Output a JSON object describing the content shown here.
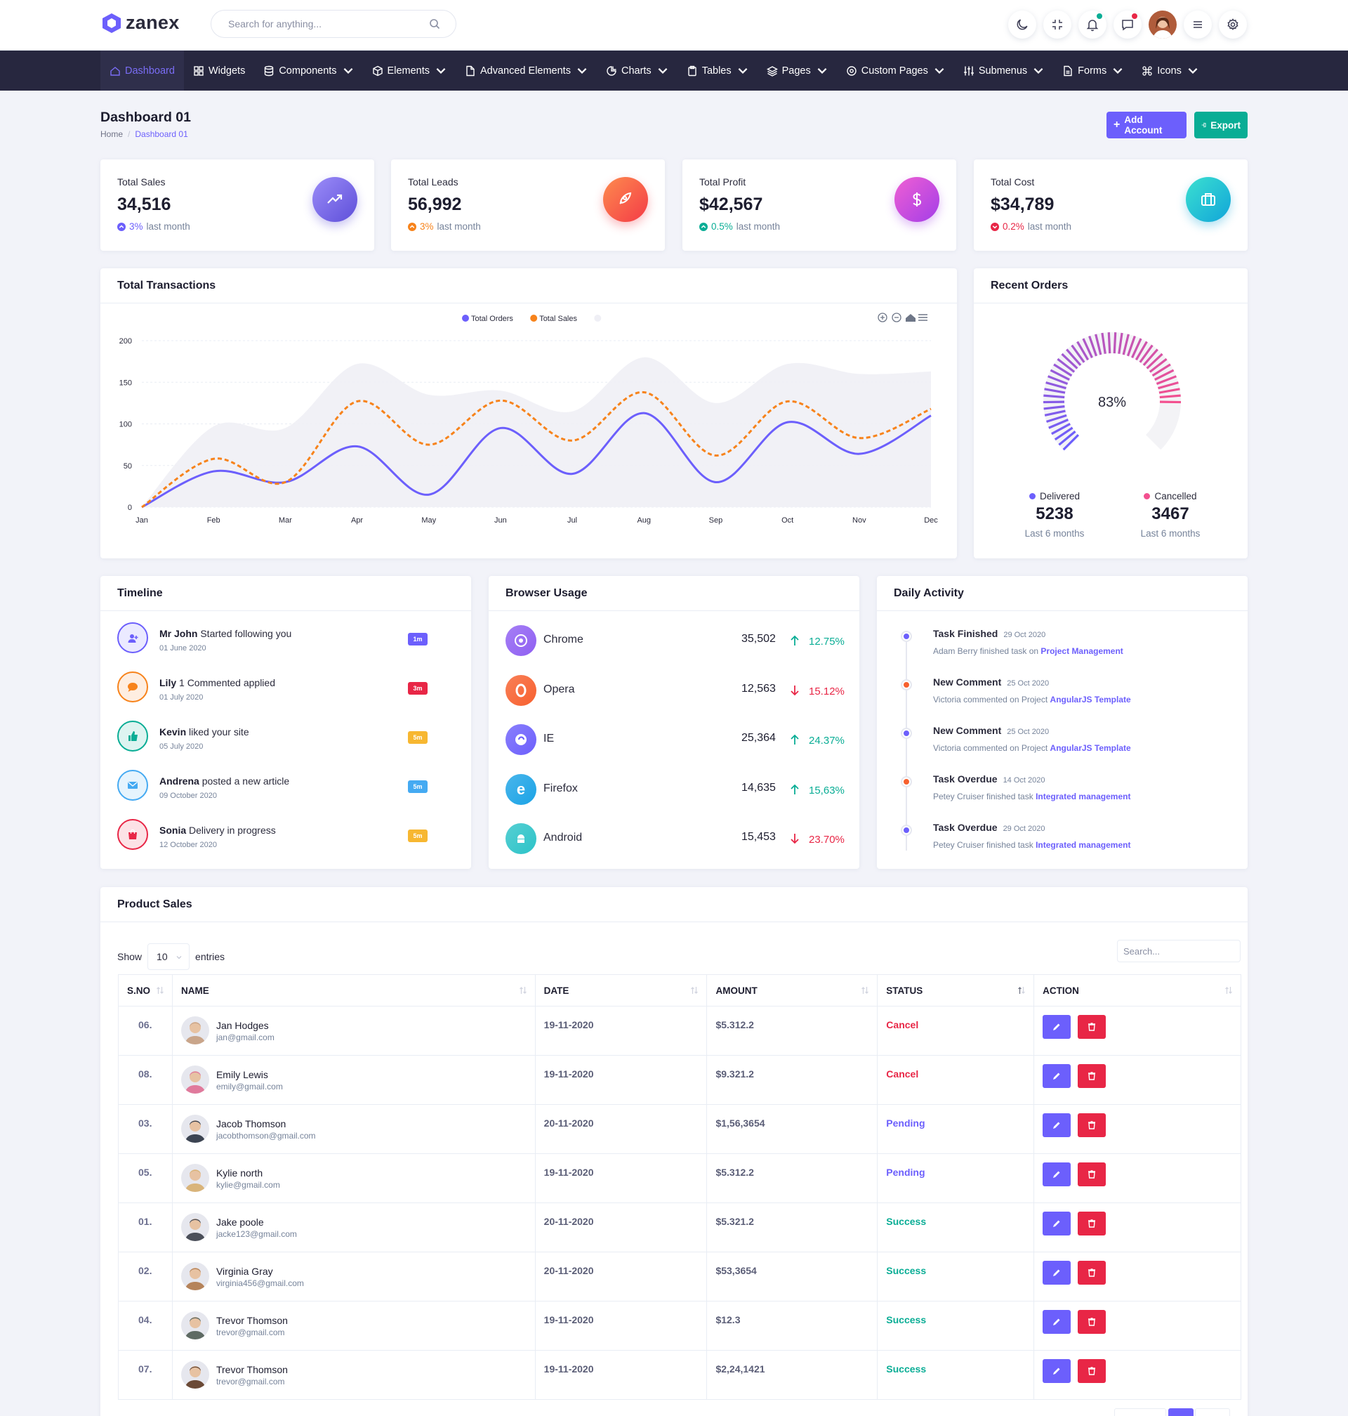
{
  "header": {
    "logo_text": "zanex",
    "search_placeholder": "Search for anything...",
    "icons": [
      "moon-icon",
      "fullscreen-exit-icon",
      "bell-icon",
      "message-icon",
      "avatar",
      "menu-icon",
      "gear-icon"
    ]
  },
  "nav": [
    {
      "label": "Dashboard",
      "icon": "home-icon",
      "active": true,
      "caret": false
    },
    {
      "label": "Widgets",
      "icon": "grid-icon",
      "caret": false
    },
    {
      "label": "Components",
      "icon": "database-icon",
      "caret": true
    },
    {
      "label": "Elements",
      "icon": "cube-icon",
      "caret": true
    },
    {
      "label": "Advanced Elements",
      "icon": "file-icon",
      "caret": true
    },
    {
      "label": "Charts",
      "icon": "pie-chart-icon",
      "caret": true
    },
    {
      "label": "Tables",
      "icon": "clipboard-icon",
      "caret": true
    },
    {
      "label": "Pages",
      "icon": "layers-icon",
      "caret": true
    },
    {
      "label": "Custom Pages",
      "icon": "settings-icon",
      "caret": true
    },
    {
      "label": "Submenus",
      "icon": "sliders-icon",
      "caret": true
    },
    {
      "label": "Forms",
      "icon": "file-text-icon",
      "caret": true
    },
    {
      "label": "Icons",
      "icon": "command-icon",
      "caret": true
    }
  ],
  "page": {
    "title": "Dashboard 01",
    "breadcrumb": [
      "Home",
      "Dashboard 01"
    ],
    "add_account": "Add Account",
    "export": "Export"
  },
  "stats": [
    {
      "label": "Total Sales",
      "value": "34,516",
      "pct": "3%",
      "suffix": "last month",
      "pct_color": "#6c5ffc",
      "trend": "up"
    },
    {
      "label": "Total Leads",
      "value": "56,992",
      "pct": "3%",
      "suffix": "last month",
      "pct_color": "#f7831b",
      "trend": "up"
    },
    {
      "label": "Total Profit",
      "value": "$42,567",
      "pct": "0.5%",
      "suffix": "last month",
      "pct_color": "#09ad95",
      "trend": "up"
    },
    {
      "label": "Total Cost",
      "value": "$34,789",
      "pct": "0.2%",
      "suffix": "last month",
      "pct_color": "#e82646",
      "trend": "down"
    }
  ],
  "transactions": {
    "title": "Total Transactions",
    "legend": [
      "Total Orders",
      "Total Sales"
    ]
  },
  "chart_data": {
    "type": "line",
    "title": "Total Transactions",
    "categories": [
      "Jan",
      "Feb",
      "Mar",
      "Apr",
      "May",
      "Jun",
      "Jul",
      "Aug",
      "Sep",
      "Oct",
      "Nov",
      "Dec"
    ],
    "ylim": [
      0,
      200
    ],
    "yticks": [
      0,
      50,
      100,
      150,
      200
    ],
    "series": [
      {
        "name": "Total Orders",
        "color": "#6c5ffc",
        "style": "solid",
        "values": [
          0,
          43,
          30,
          73,
          15,
          95,
          40,
          113,
          30,
          102,
          64,
          110
        ]
      },
      {
        "name": "Total Sales",
        "color": "#f7831b",
        "style": "dashed",
        "values": [
          0,
          58,
          30,
          127,
          75,
          128,
          80,
          138,
          62,
          127,
          83,
          118
        ]
      },
      {
        "name": "",
        "color": "#efeff5",
        "style": "area",
        "values": [
          0,
          97,
          95,
          172,
          135,
          140,
          115,
          180,
          125,
          172,
          160,
          163
        ]
      }
    ],
    "grid": true,
    "legend_position": "top-center"
  },
  "recent_orders": {
    "title": "Recent Orders",
    "percent": "83%",
    "percent_value": 83,
    "delivered_label": "Delivered",
    "delivered_value": "5238",
    "delivered_sub": "Last 6 months",
    "cancelled_label": "Cancelled",
    "cancelled_value": "3467",
    "cancelled_sub": "Last 6 months"
  },
  "timeline": {
    "title": "Timeline",
    "items": [
      {
        "name": "Mr John",
        "text": "Started following you",
        "date": "01 June 2020",
        "badge": "1m",
        "color": "#6c5ffc",
        "icon": "user-plus-icon"
      },
      {
        "name": "Lily",
        "text": "1 Commented applied",
        "date": "01 July 2020",
        "badge": "3m",
        "color": "#f7831b",
        "icon": "comment-icon"
      },
      {
        "name": "Kevin",
        "text": "liked your site",
        "date": "05 July 2020",
        "badge": "5m",
        "color": "#09ad95",
        "icon": "thumbs-up-icon"
      },
      {
        "name": "Andrena",
        "text": "posted a new article",
        "date": "09 October 2020",
        "badge": "5m",
        "color": "#45aaf2",
        "icon": "mail-icon"
      },
      {
        "name": "Sonia",
        "text": "Delivery in progress",
        "date": "12 October 2020",
        "badge": "5m",
        "color": "#e82646",
        "icon": "shopping-bag-icon"
      }
    ],
    "badge_colors": [
      "#6c5ffc",
      "#e82646",
      "#f7b731",
      "#45aaf2",
      "#f7b731"
    ]
  },
  "browser_usage": {
    "title": "Browser Usage",
    "items": [
      {
        "name": "Chrome",
        "value": "35,502",
        "pct": "12.75%",
        "dir": "up",
        "color": "#8f5ff2",
        "icon": "chrome-icon"
      },
      {
        "name": "Opera",
        "value": "12,563",
        "pct": "15.12%",
        "dir": "down",
        "color": "#f7602e",
        "icon": "opera-icon"
      },
      {
        "name": "IE",
        "value": "25,364",
        "pct": "24.37%",
        "dir": "up",
        "color": "#6c5ffc",
        "icon": "ie-icon"
      },
      {
        "name": "Firefox",
        "value": "14,635",
        "pct": "15,63%",
        "dir": "up",
        "color": "#1ba3e6",
        "icon": "firefox-icon"
      },
      {
        "name": "Android",
        "value": "15,453",
        "pct": "23.70%",
        "dir": "down",
        "color": "#2cc3c8",
        "icon": "android-icon"
      }
    ]
  },
  "daily_activity": {
    "title": "Daily Activity",
    "items": [
      {
        "title": "Task Finished",
        "date": "29 Oct 2020",
        "desc": "Adam Berry finished task on",
        "link": "Project Management",
        "color": "#6c5ffc"
      },
      {
        "title": "New Comment",
        "date": "25 Oct 2020",
        "desc": "Victoria commented on Project",
        "link": "AngularJS Template",
        "color": "#f7602e"
      },
      {
        "title": "New Comment",
        "date": "25 Oct 2020",
        "desc": "Victoria commented on Project",
        "link": "AngularJS Template",
        "color": "#6c5ffc"
      },
      {
        "title": "Task Overdue",
        "date": "14 Oct 2020",
        "desc": "Petey Cruiser finished task",
        "link": "Integrated management",
        "color": "#f7602e"
      },
      {
        "title": "Task Overdue",
        "date": "29 Oct 2020",
        "desc": "Petey Cruiser finished task",
        "link": "Integrated management",
        "color": "#6c5ffc"
      }
    ]
  },
  "product_sales": {
    "title": "Product Sales",
    "show_label": "Show",
    "entries_value": "10",
    "entries_label": "entries",
    "search_placeholder": "Search...",
    "columns": [
      "S.NO",
      "NAME",
      "DATE",
      "AMOUNT",
      "STATUS",
      "ACTION"
    ],
    "rows": [
      {
        "sno": "06.",
        "name": "Jan Hodges",
        "email": "jan@gmail.com",
        "date": "19-11-2020",
        "amount": "$5.312.2",
        "status": "Cancel",
        "status_color": "#e82646",
        "avatar_color": "#c9a58a"
      },
      {
        "sno": "08.",
        "name": "Emily Lewis",
        "email": "emily@gmail.com",
        "date": "19-11-2020",
        "amount": "$9.321.2",
        "status": "Cancel",
        "status_color": "#e82646",
        "avatar_color": "#e07a9c"
      },
      {
        "sno": "03.",
        "name": "Jacob Thomson",
        "email": "jacobthomson@gmail.com",
        "date": "20-11-2020",
        "amount": "$1,56,3654",
        "status": "Pending",
        "status_color": "#6c5ffc",
        "avatar_color": "#3c4452"
      },
      {
        "sno": "05.",
        "name": "Kylie north",
        "email": "kylie@gmail.com",
        "date": "19-11-2020",
        "amount": "$5.312.2",
        "status": "Pending",
        "status_color": "#6c5ffc",
        "avatar_color": "#d9b47a"
      },
      {
        "sno": "01.",
        "name": "Jake poole",
        "email": "jacke123@gmail.com",
        "date": "20-11-2020",
        "amount": "$5.321.2",
        "status": "Success",
        "status_color": "#09ad95",
        "avatar_color": "#4b4f59"
      },
      {
        "sno": "02.",
        "name": "Virginia Gray",
        "email": "virginia456@gmail.com",
        "date": "20-11-2020",
        "amount": "$53,3654",
        "status": "Success",
        "status_color": "#09ad95",
        "avatar_color": "#b5835a"
      },
      {
        "sno": "04.",
        "name": "Trevor Thomson",
        "email": "trevor@gmail.com",
        "date": "19-11-2020",
        "amount": "$12.3",
        "status": "Success",
        "status_color": "#09ad95",
        "avatar_color": "#5e6a63"
      },
      {
        "sno": "07.",
        "name": "Trevor Thomson",
        "email": "trevor@gmail.com",
        "date": "19-11-2020",
        "amount": "$2,24,1421",
        "status": "Success",
        "status_color": "#09ad95",
        "avatar_color": "#6b4a36"
      }
    ]
  },
  "colors": {
    "primary": "#6c5ffc",
    "secondary": "#09ad95",
    "danger": "#e82646",
    "nav_bg": "#27273f",
    "page_bg": "#f2f3f9"
  }
}
